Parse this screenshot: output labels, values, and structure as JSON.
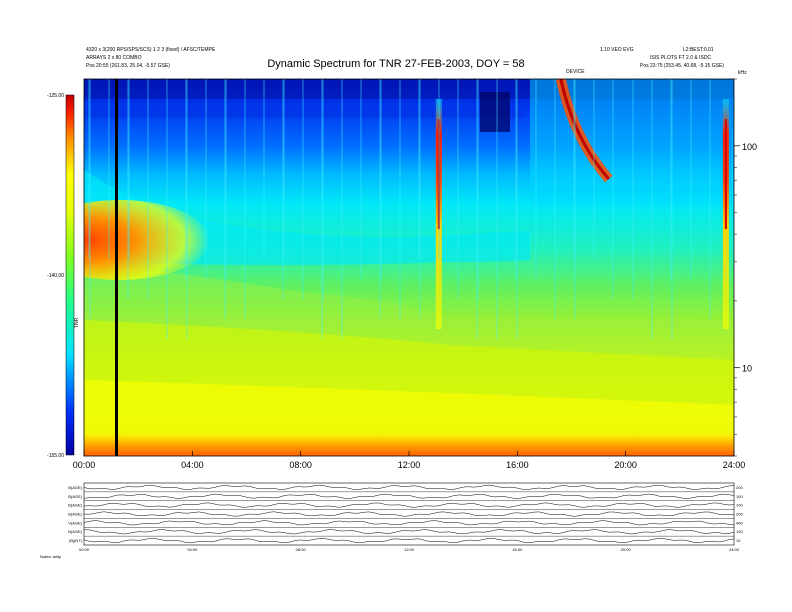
{
  "header": {
    "left_line1": "4320 x 3(200 RPS/SPS/SCS) 1 2 3 (fixed) / AFSC/TEMPE",
    "left_line2": "ARRAYS 2 x 80 COMBO",
    "left_line3": "Pos  20:55 (261.83, 25.04, -5.57 GSE)",
    "right_line1": "1.10 VEO EVG",
    "right_line2": "L2:BEST:0.01",
    "right_line3": "ISIS PLOTS FT 2.0 & ISDC",
    "right_line4": "Pos  23:75 (253.45, 40.68, -5.15 GSE)",
    "mid_tag": "DEVICE"
  },
  "chart_data": {
    "type": "heatmap",
    "title": "Dynamic Spectrum for TNR 27-FEB-2003, DOY = 58",
    "xlabel": "",
    "ylabel": "kHz",
    "x_ticks": [
      "00:00",
      "04:00",
      "08:00",
      "12:00",
      "16:00",
      "20:00",
      "24:00"
    ],
    "x_range_hours": [
      0,
      24
    ],
    "y_scale": "log",
    "y_range_khz": [
      4,
      200
    ],
    "y_tick_labels": [
      "100",
      "10"
    ],
    "y_tick_values": [
      100,
      10
    ],
    "colorbar": {
      "label": "TNR",
      "ticks": [
        "-125.00",
        "-140.00",
        "-155.00"
      ],
      "tick_values": [
        -125,
        -140,
        -155
      ],
      "range": [
        -155,
        -125
      ],
      "colors": [
        "#0000b0",
        "#0040ff",
        "#00e0ff",
        "#40ff80",
        "#d0ff00",
        "#ffff00",
        "#ffa000",
        "#ff2000",
        "#c00000"
      ]
    },
    "annotations": [
      {
        "type": "vertical-line",
        "x_hours": 1.2,
        "color": "#000000"
      }
    ],
    "features": [
      {
        "name": "burst",
        "x_hours": 13.1,
        "kind": "vertical-streak"
      },
      {
        "name": "burst",
        "x_hours": 17.9,
        "kind": "drifting-band"
      },
      {
        "name": "burst",
        "x_hours": 23.7,
        "kind": "vertical-streak"
      }
    ]
  },
  "timeseries": {
    "panels": [
      {
        "label": "B(AGE)",
        "right": "200"
      },
      {
        "label": "B(AGE)",
        "right": "100"
      },
      {
        "label": "B(AGE)",
        "right": "100"
      },
      {
        "label": "B(AGE)",
        "right": "200"
      },
      {
        "label": "V(AGE)",
        "right": "400"
      },
      {
        "label": "N(AGE)",
        "right": "100"
      },
      {
        "label": "|B|(NT)",
        "right": "10"
      }
    ],
    "x_ticks": [
      "00:00",
      "04:00",
      "08:00",
      "12:00",
      "16:00",
      "20:00",
      "24:00"
    ],
    "footer": "Notes:  wfdp"
  }
}
